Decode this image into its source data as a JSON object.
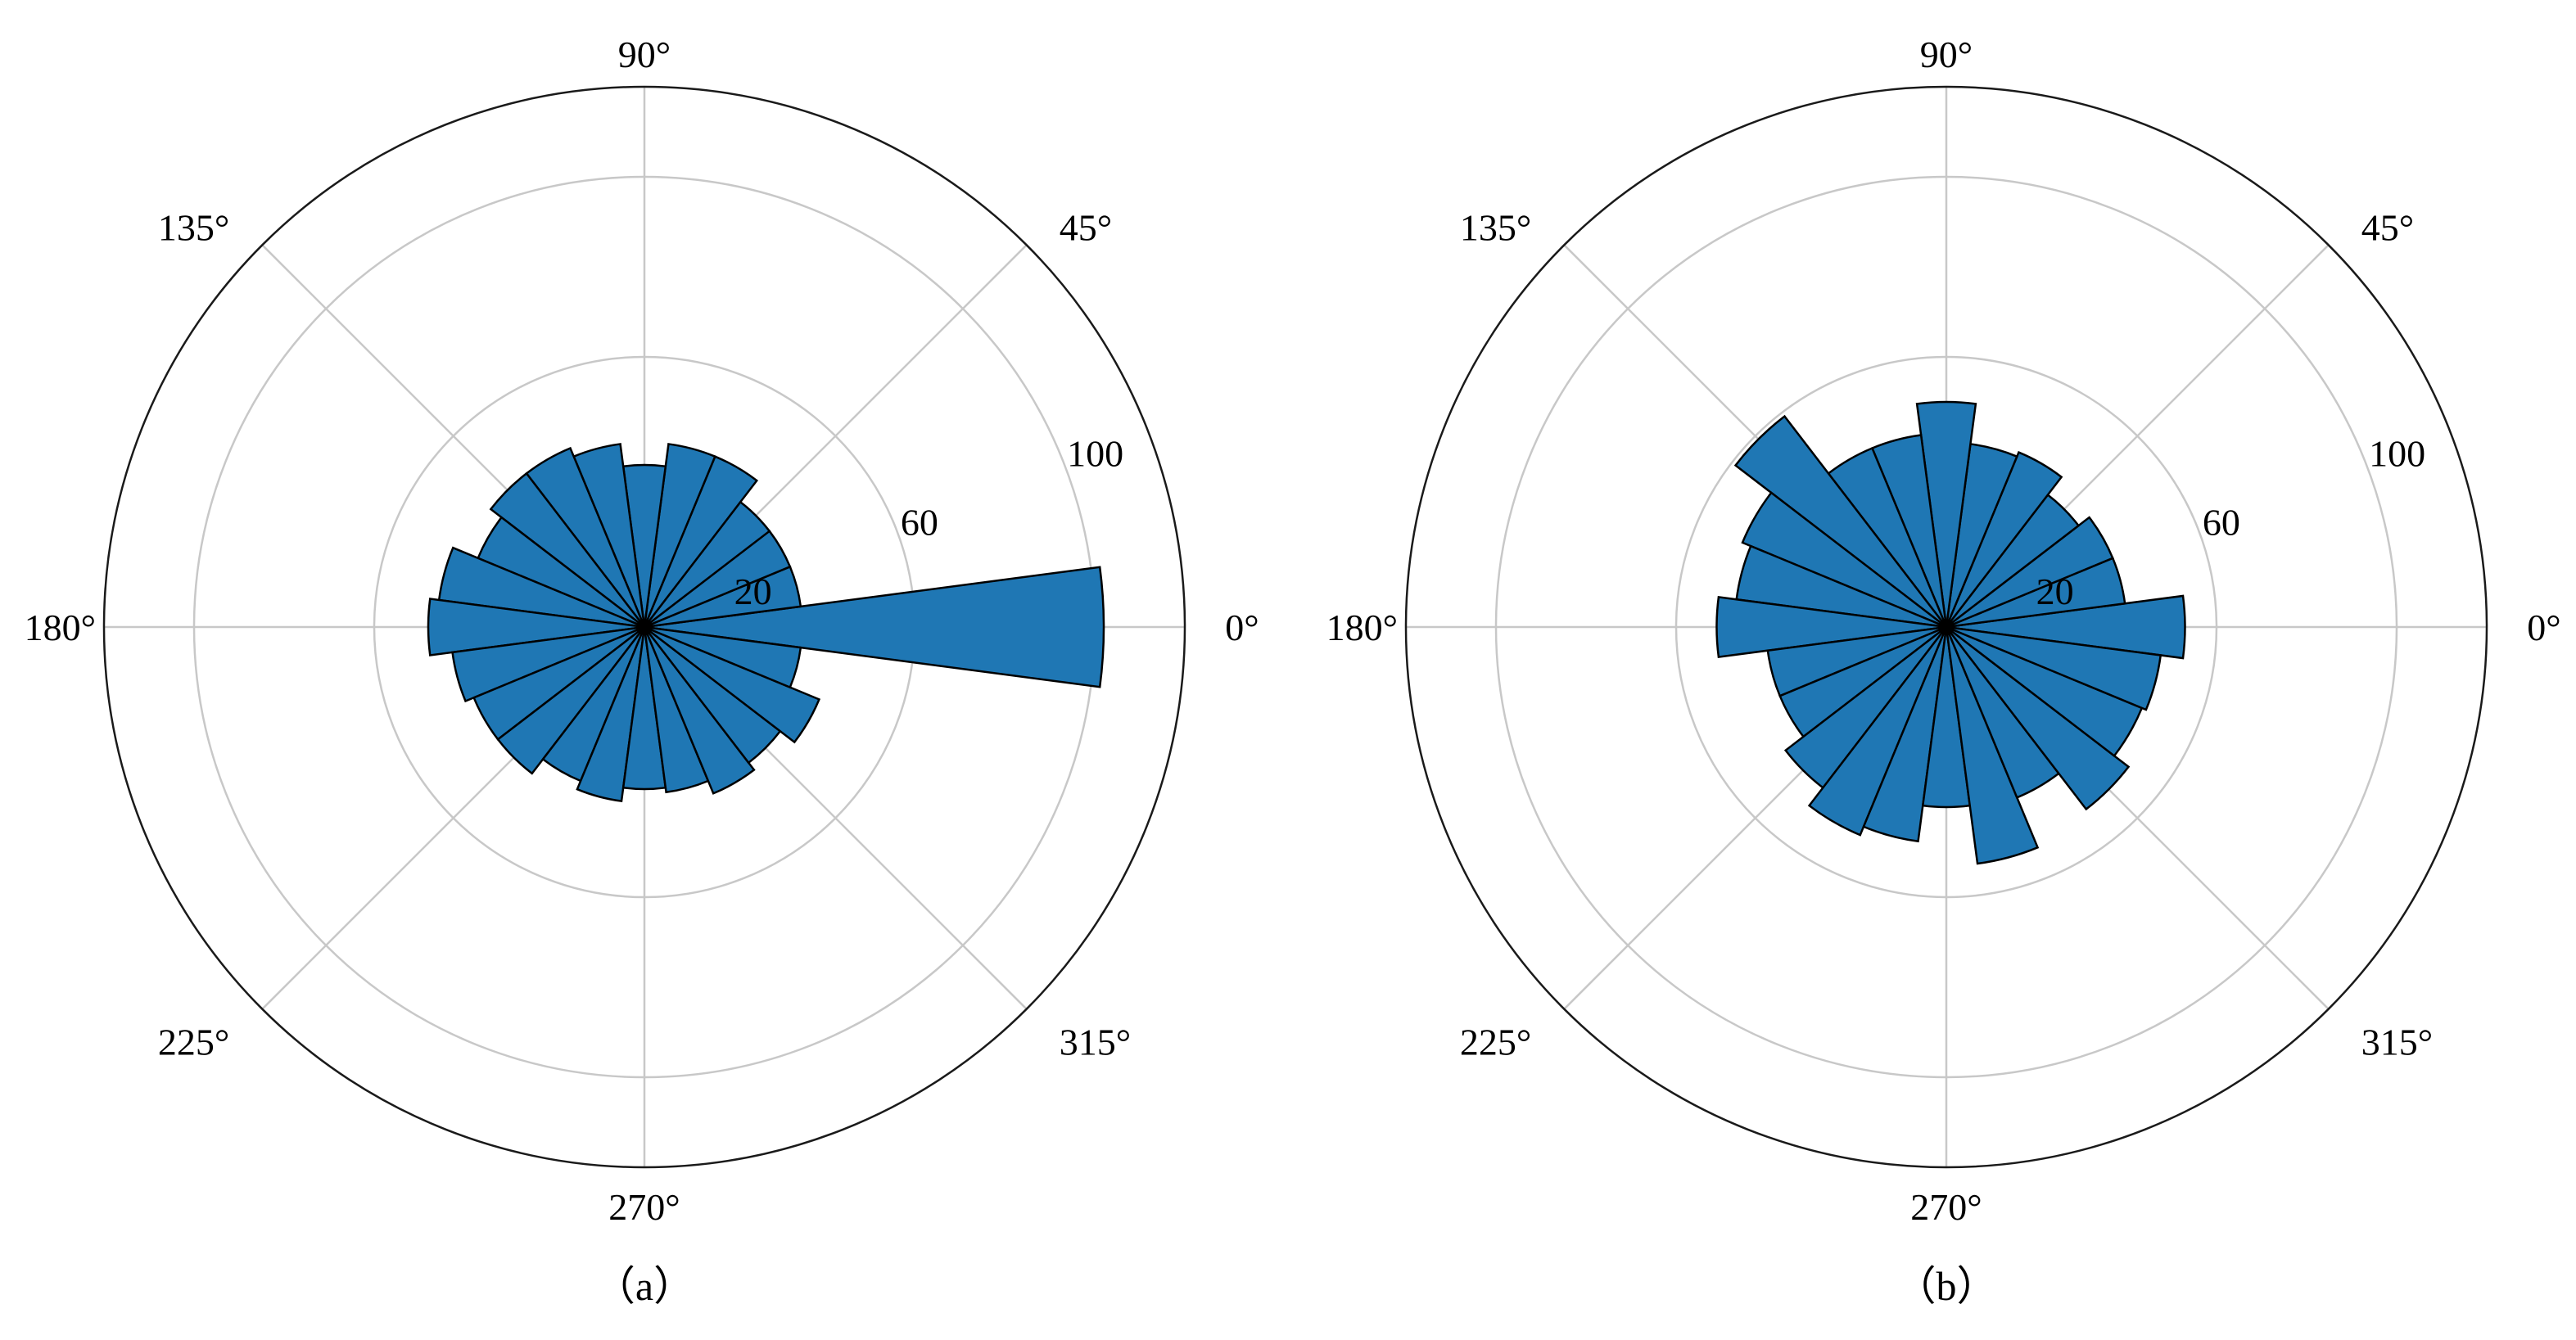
{
  "chart_data": [
    {
      "type": "polar-bar",
      "caption": "（a）",
      "angle_ticks": [
        "0°",
        "45°",
        "90°",
        "135°",
        "180°",
        "225°",
        "270°",
        "315°"
      ],
      "radial_ticks": [
        "20",
        "60",
        "100"
      ],
      "radial_tick_values": [
        20,
        60,
        100
      ],
      "rmax": 120,
      "bin_width_deg": 15,
      "bar_color": "#1f77b4",
      "bins_deg": [
        0,
        15,
        30,
        45,
        60,
        75,
        90,
        105,
        120,
        135,
        150,
        165,
        180,
        195,
        210,
        225,
        240,
        255,
        270,
        285,
        300,
        315,
        330,
        345
      ],
      "values": [
        102,
        35,
        35,
        35,
        41,
        41,
        36,
        41,
        43,
        43,
        40,
        46,
        48,
        43,
        41,
        41,
        37,
        39,
        36,
        37,
        40,
        38,
        42,
        35
      ]
    },
    {
      "type": "polar-bar",
      "caption": "（b）",
      "angle_ticks": [
        "0°",
        "45°",
        "90°",
        "135°",
        "180°",
        "225°",
        "270°",
        "315°"
      ],
      "radial_ticks": [
        "20",
        "60",
        "100"
      ],
      "radial_tick_values": [
        20,
        60,
        100
      ],
      "rmax": 120,
      "bin_width_deg": 15,
      "bar_color": "#1f77b4",
      "bins_deg": [
        0,
        15,
        30,
        45,
        60,
        75,
        90,
        105,
        120,
        135,
        150,
        165,
        180,
        195,
        210,
        225,
        240,
        255,
        270,
        285,
        300,
        315,
        330,
        345
      ],
      "values": [
        53,
        40,
        40,
        37,
        42,
        41,
        50,
        43,
        43,
        59,
        49,
        47,
        51,
        40,
        40,
        45,
        50,
        48,
        40,
        53,
        41,
        51,
        47,
        48
      ]
    }
  ]
}
